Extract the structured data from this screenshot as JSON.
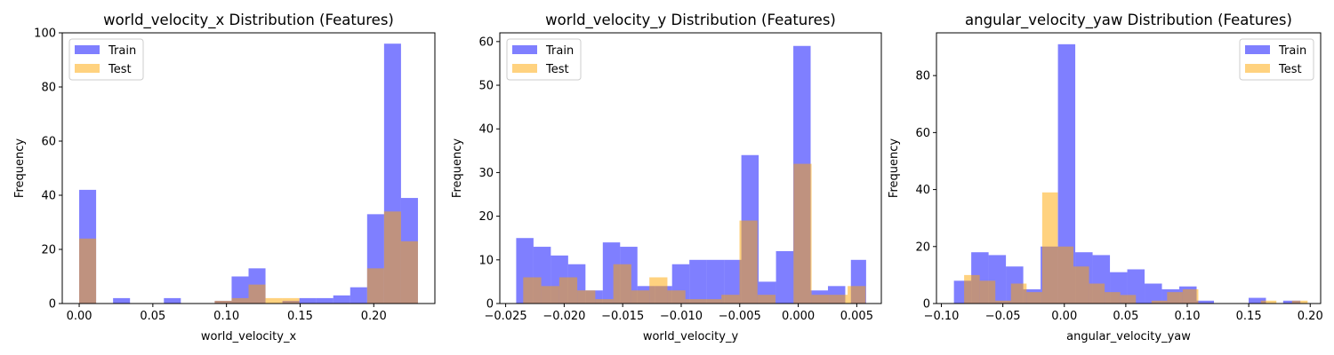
{
  "colors": {
    "train": "#0000ff",
    "test": "#ffa500",
    "train_alpha": 0.5,
    "test_alpha": 0.5
  },
  "chart_data": [
    {
      "type": "bar",
      "title": "world_velocity_x Distribution (Features)",
      "xlabel": "world_velocity_x",
      "ylabel": "Frequency",
      "xlim": [
        -0.0115,
        0.2415
      ],
      "ylim": [
        0,
        100
      ],
      "xticks": [
        0.0,
        0.05,
        0.1,
        0.15,
        0.2
      ],
      "xtick_labels": [
        "0.00",
        "0.05",
        "0.10",
        "0.15",
        "0.20"
      ],
      "yticks": [
        0,
        20,
        40,
        60,
        80,
        100
      ],
      "ytick_labels": [
        "0",
        "20",
        "40",
        "60",
        "80",
        "100"
      ],
      "legend": [
        "Train",
        "Test"
      ],
      "legend_position": "upper-left",
      "series": [
        {
          "name": "Train",
          "bins": [
            [
              0.0,
              0.0115,
              42
            ],
            [
              0.023,
              0.0345,
              2
            ],
            [
              0.0575,
              0.069,
              2
            ],
            [
              0.092,
              0.1035,
              1
            ],
            [
              0.1035,
              0.115,
              10
            ],
            [
              0.115,
              0.1265,
              13
            ],
            [
              0.138,
              0.1495,
              1
            ],
            [
              0.1495,
              0.161,
              2
            ],
            [
              0.161,
              0.1725,
              2
            ],
            [
              0.1725,
              0.184,
              3
            ],
            [
              0.184,
              0.1955,
              6
            ],
            [
              0.1955,
              0.207,
              33
            ],
            [
              0.207,
              0.2185,
              96
            ],
            [
              0.2185,
              0.23,
              39
            ]
          ]
        },
        {
          "name": "Test",
          "bins": [
            [
              0.0,
              0.0115,
              24
            ],
            [
              0.092,
              0.1035,
              1
            ],
            [
              0.1035,
              0.115,
              2
            ],
            [
              0.115,
              0.1265,
              7
            ],
            [
              0.1265,
              0.138,
              2
            ],
            [
              0.138,
              0.1495,
              2
            ],
            [
              0.1955,
              0.207,
              13
            ],
            [
              0.207,
              0.2185,
              34
            ],
            [
              0.2185,
              0.23,
              23
            ]
          ]
        }
      ]
    },
    {
      "type": "bar",
      "title": "world_velocity_y Distribution (Features)",
      "xlabel": "world_velocity_y",
      "ylabel": "Frequency",
      "xlim": [
        -0.0255,
        0.0071
      ],
      "ylim": [
        0,
        62
      ],
      "xticks": [
        -0.025,
        -0.02,
        -0.015,
        -0.01,
        -0.005,
        0.0,
        0.005
      ],
      "xtick_labels": [
        "−0.025",
        "−0.020",
        "−0.015",
        "−0.010",
        "−0.005",
        "0.000",
        "0.005"
      ],
      "yticks": [
        0,
        10,
        20,
        30,
        40,
        50,
        60
      ],
      "ytick_labels": [
        "0",
        "10",
        "20",
        "30",
        "40",
        "50",
        "60"
      ],
      "legend": [
        "Train",
        "Test"
      ],
      "legend_position": "upper-left",
      "series": [
        {
          "name": "Train",
          "bins": [
            [
              -0.0241,
              -0.02262,
              15
            ],
            [
              -0.02262,
              -0.02114,
              13
            ],
            [
              -0.02114,
              -0.01966,
              11
            ],
            [
              -0.01966,
              -0.01818,
              9
            ],
            [
              -0.01818,
              -0.0167,
              3
            ],
            [
              -0.0167,
              -0.01522,
              14
            ],
            [
              -0.01522,
              -0.01374,
              13
            ],
            [
              -0.01374,
              -0.01226,
              4
            ],
            [
              -0.01226,
              -0.01078,
              4
            ],
            [
              -0.01078,
              -0.0093,
              9
            ],
            [
              -0.0093,
              -0.00782,
              10
            ],
            [
              -0.00782,
              -0.00634,
              10
            ],
            [
              -0.00634,
              -0.00486,
              10
            ],
            [
              -0.00486,
              -0.00338,
              34
            ],
            [
              -0.00338,
              -0.0019,
              5
            ],
            [
              -0.0019,
              -0.00042,
              12
            ],
            [
              -0.00042,
              0.00106,
              59
            ],
            [
              0.00106,
              0.00254,
              3
            ],
            [
              0.00254,
              0.00402,
              4
            ],
            [
              0.00402,
              0.0055,
              0
            ],
            [
              0.0045,
              0.0058,
              10
            ]
          ]
        },
        {
          "name": "Test",
          "bins": [
            [
              -0.0235,
              -0.02196,
              6
            ],
            [
              -0.02196,
              -0.02042,
              4
            ],
            [
              -0.02042,
              -0.01888,
              6
            ],
            [
              -0.01888,
              -0.01734,
              3
            ],
            [
              -0.01734,
              -0.0158,
              1
            ],
            [
              -0.0158,
              -0.01426,
              9
            ],
            [
              -0.01426,
              -0.01272,
              3
            ],
            [
              -0.01272,
              -0.01118,
              6
            ],
            [
              -0.01118,
              -0.00964,
              3
            ],
            [
              -0.00964,
              -0.0081,
              1
            ],
            [
              -0.0081,
              -0.00656,
              1
            ],
            [
              -0.00656,
              -0.00502,
              2
            ],
            [
              -0.00502,
              -0.00348,
              19
            ],
            [
              -0.00348,
              -0.00194,
              2
            ],
            [
              -0.00194,
              -0.0004,
              0
            ],
            [
              -0.0004,
              0.00114,
              32
            ],
            [
              0.00114,
              0.00268,
              2
            ],
            [
              0.00268,
              0.00422,
              2
            ],
            [
              0.00422,
              0.00576,
              4
            ]
          ]
        }
      ]
    },
    {
      "type": "bar",
      "title": "angular_velocity_yaw Distribution (Features)",
      "xlabel": "angular_velocity_yaw",
      "ylabel": "Frequency",
      "xlim": [
        -0.104,
        0.2085
      ],
      "ylim": [
        0,
        95
      ],
      "xticks": [
        -0.1,
        -0.05,
        0.0,
        0.05,
        0.1,
        0.15,
        0.2
      ],
      "xtick_labels": [
        "−0.10",
        "−0.05",
        "0.00",
        "0.05",
        "0.10",
        "0.15",
        "0.20"
      ],
      "yticks": [
        0,
        20,
        40,
        60,
        80
      ],
      "ytick_labels": [
        "0",
        "20",
        "40",
        "60",
        "80"
      ],
      "legend": [
        "Train",
        "Test"
      ],
      "legend_position": "upper-right",
      "series": [
        {
          "name": "Train",
          "bins": [
            [
              -0.0898,
              -0.0757,
              8
            ],
            [
              -0.0757,
              -0.0616,
              18
            ],
            [
              -0.0616,
              -0.0475,
              17
            ],
            [
              -0.0475,
              -0.0334,
              13
            ],
            [
              -0.0334,
              -0.0193,
              5
            ],
            [
              -0.0193,
              -0.0052,
              20
            ],
            [
              -0.0052,
              0.0089,
              91
            ],
            [
              0.0089,
              0.023,
              18
            ],
            [
              0.023,
              0.0371,
              17
            ],
            [
              0.0371,
              0.0512,
              11
            ],
            [
              0.0512,
              0.0653,
              12
            ],
            [
              0.0653,
              0.0794,
              7
            ],
            [
              0.0794,
              0.0935,
              5
            ],
            [
              0.0935,
              0.1076,
              6
            ],
            [
              0.1076,
              0.1217,
              1
            ],
            [
              0.1499,
              0.164,
              2
            ],
            [
              0.178,
              0.192,
              1
            ]
          ]
        },
        {
          "name": "Test",
          "bins": [
            [
              -0.0815,
              -0.0688,
              10
            ],
            [
              -0.0688,
              -0.0561,
              8
            ],
            [
              -0.0561,
              -0.0434,
              1
            ],
            [
              -0.0434,
              -0.0307,
              7
            ],
            [
              -0.0307,
              -0.018,
              4
            ],
            [
              -0.018,
              -0.0053,
              39
            ],
            [
              -0.0053,
              0.0074,
              20
            ],
            [
              0.0074,
              0.0201,
              13
            ],
            [
              0.0201,
              0.0328,
              7
            ],
            [
              0.0328,
              0.0455,
              4
            ],
            [
              0.0455,
              0.0582,
              3
            ],
            [
              0.0709,
              0.0836,
              1
            ],
            [
              0.0836,
              0.0963,
              4
            ],
            [
              0.0963,
              0.109,
              5
            ],
            [
              0.1217,
              0.1344,
              0
            ],
            [
              0.1598,
              0.1725,
              1
            ],
            [
              0.1852,
              0.1979,
              1
            ]
          ]
        }
      ]
    }
  ]
}
